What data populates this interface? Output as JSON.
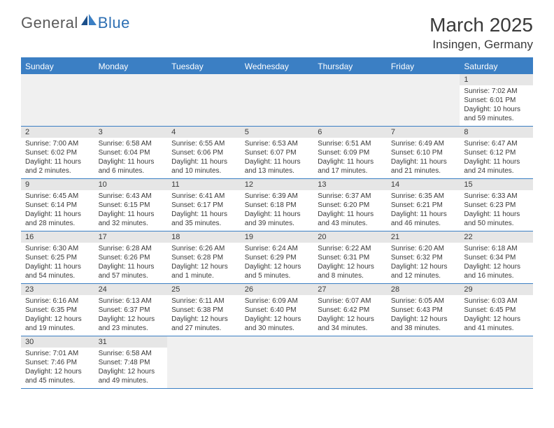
{
  "logo": {
    "general": "General",
    "blue": "Blue"
  },
  "title": "March 2025",
  "location": "Insingen, Germany",
  "colors": {
    "header_bg": "#3b7fc4",
    "header_text": "#ffffff",
    "daynum_bg": "#e6e6e6",
    "empty_bg": "#f0f0f0",
    "border": "#3b7fc4",
    "text": "#3a3a3a"
  },
  "day_labels": [
    "Sunday",
    "Monday",
    "Tuesday",
    "Wednesday",
    "Thursday",
    "Friday",
    "Saturday"
  ],
  "weeks": [
    [
      null,
      null,
      null,
      null,
      null,
      null,
      {
        "d": "1",
        "sr": "Sunrise: 7:02 AM",
        "ss": "Sunset: 6:01 PM",
        "dl": "Daylight: 10 hours and 59 minutes."
      }
    ],
    [
      {
        "d": "2",
        "sr": "Sunrise: 7:00 AM",
        "ss": "Sunset: 6:02 PM",
        "dl": "Daylight: 11 hours and 2 minutes."
      },
      {
        "d": "3",
        "sr": "Sunrise: 6:58 AM",
        "ss": "Sunset: 6:04 PM",
        "dl": "Daylight: 11 hours and 6 minutes."
      },
      {
        "d": "4",
        "sr": "Sunrise: 6:55 AM",
        "ss": "Sunset: 6:06 PM",
        "dl": "Daylight: 11 hours and 10 minutes."
      },
      {
        "d": "5",
        "sr": "Sunrise: 6:53 AM",
        "ss": "Sunset: 6:07 PM",
        "dl": "Daylight: 11 hours and 13 minutes."
      },
      {
        "d": "6",
        "sr": "Sunrise: 6:51 AM",
        "ss": "Sunset: 6:09 PM",
        "dl": "Daylight: 11 hours and 17 minutes."
      },
      {
        "d": "7",
        "sr": "Sunrise: 6:49 AM",
        "ss": "Sunset: 6:10 PM",
        "dl": "Daylight: 11 hours and 21 minutes."
      },
      {
        "d": "8",
        "sr": "Sunrise: 6:47 AM",
        "ss": "Sunset: 6:12 PM",
        "dl": "Daylight: 11 hours and 24 minutes."
      }
    ],
    [
      {
        "d": "9",
        "sr": "Sunrise: 6:45 AM",
        "ss": "Sunset: 6:14 PM",
        "dl": "Daylight: 11 hours and 28 minutes."
      },
      {
        "d": "10",
        "sr": "Sunrise: 6:43 AM",
        "ss": "Sunset: 6:15 PM",
        "dl": "Daylight: 11 hours and 32 minutes."
      },
      {
        "d": "11",
        "sr": "Sunrise: 6:41 AM",
        "ss": "Sunset: 6:17 PM",
        "dl": "Daylight: 11 hours and 35 minutes."
      },
      {
        "d": "12",
        "sr": "Sunrise: 6:39 AM",
        "ss": "Sunset: 6:18 PM",
        "dl": "Daylight: 11 hours and 39 minutes."
      },
      {
        "d": "13",
        "sr": "Sunrise: 6:37 AM",
        "ss": "Sunset: 6:20 PM",
        "dl": "Daylight: 11 hours and 43 minutes."
      },
      {
        "d": "14",
        "sr": "Sunrise: 6:35 AM",
        "ss": "Sunset: 6:21 PM",
        "dl": "Daylight: 11 hours and 46 minutes."
      },
      {
        "d": "15",
        "sr": "Sunrise: 6:33 AM",
        "ss": "Sunset: 6:23 PM",
        "dl": "Daylight: 11 hours and 50 minutes."
      }
    ],
    [
      {
        "d": "16",
        "sr": "Sunrise: 6:30 AM",
        "ss": "Sunset: 6:25 PM",
        "dl": "Daylight: 11 hours and 54 minutes."
      },
      {
        "d": "17",
        "sr": "Sunrise: 6:28 AM",
        "ss": "Sunset: 6:26 PM",
        "dl": "Daylight: 11 hours and 57 minutes."
      },
      {
        "d": "18",
        "sr": "Sunrise: 6:26 AM",
        "ss": "Sunset: 6:28 PM",
        "dl": "Daylight: 12 hours and 1 minute."
      },
      {
        "d": "19",
        "sr": "Sunrise: 6:24 AM",
        "ss": "Sunset: 6:29 PM",
        "dl": "Daylight: 12 hours and 5 minutes."
      },
      {
        "d": "20",
        "sr": "Sunrise: 6:22 AM",
        "ss": "Sunset: 6:31 PM",
        "dl": "Daylight: 12 hours and 8 minutes."
      },
      {
        "d": "21",
        "sr": "Sunrise: 6:20 AM",
        "ss": "Sunset: 6:32 PM",
        "dl": "Daylight: 12 hours and 12 minutes."
      },
      {
        "d": "22",
        "sr": "Sunrise: 6:18 AM",
        "ss": "Sunset: 6:34 PM",
        "dl": "Daylight: 12 hours and 16 minutes."
      }
    ],
    [
      {
        "d": "23",
        "sr": "Sunrise: 6:16 AM",
        "ss": "Sunset: 6:35 PM",
        "dl": "Daylight: 12 hours and 19 minutes."
      },
      {
        "d": "24",
        "sr": "Sunrise: 6:13 AM",
        "ss": "Sunset: 6:37 PM",
        "dl": "Daylight: 12 hours and 23 minutes."
      },
      {
        "d": "25",
        "sr": "Sunrise: 6:11 AM",
        "ss": "Sunset: 6:38 PM",
        "dl": "Daylight: 12 hours and 27 minutes."
      },
      {
        "d": "26",
        "sr": "Sunrise: 6:09 AM",
        "ss": "Sunset: 6:40 PM",
        "dl": "Daylight: 12 hours and 30 minutes."
      },
      {
        "d": "27",
        "sr": "Sunrise: 6:07 AM",
        "ss": "Sunset: 6:42 PM",
        "dl": "Daylight: 12 hours and 34 minutes."
      },
      {
        "d": "28",
        "sr": "Sunrise: 6:05 AM",
        "ss": "Sunset: 6:43 PM",
        "dl": "Daylight: 12 hours and 38 minutes."
      },
      {
        "d": "29",
        "sr": "Sunrise: 6:03 AM",
        "ss": "Sunset: 6:45 PM",
        "dl": "Daylight: 12 hours and 41 minutes."
      }
    ],
    [
      {
        "d": "30",
        "sr": "Sunrise: 7:01 AM",
        "ss": "Sunset: 7:46 PM",
        "dl": "Daylight: 12 hours and 45 minutes."
      },
      {
        "d": "31",
        "sr": "Sunrise: 6:58 AM",
        "ss": "Sunset: 7:48 PM",
        "dl": "Daylight: 12 hours and 49 minutes."
      },
      null,
      null,
      null,
      null,
      null
    ]
  ]
}
